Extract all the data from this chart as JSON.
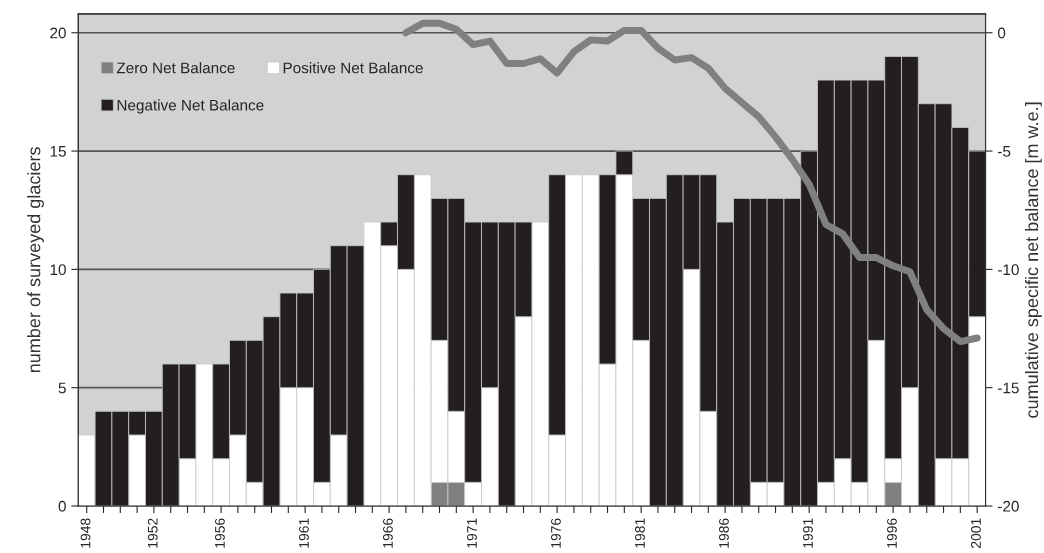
{
  "chart_data": {
    "type": "bar",
    "stacked": true,
    "ylabel": "number of surveyed glaciers",
    "y2label": "cumulative specific net balance [m w.e.]",
    "categories": [
      "1948",
      null,
      null,
      null,
      "1952",
      null,
      null,
      null,
      "1956",
      null,
      null,
      null,
      null,
      "1961",
      null,
      null,
      null,
      null,
      "1966",
      null,
      null,
      null,
      null,
      "1971",
      null,
      null,
      null,
      null,
      "1976",
      null,
      null,
      null,
      null,
      "1981",
      null,
      null,
      null,
      null,
      "1986",
      null,
      null,
      null,
      null,
      "1991",
      null,
      null,
      null,
      null,
      "1996",
      null,
      null,
      null,
      null,
      "2001"
    ],
    "series": [
      {
        "name": "Zero Net Balance",
        "color": "#808080",
        "values": [
          0,
          0,
          0,
          0,
          0,
          0,
          0,
          0,
          0,
          0,
          0,
          0,
          0,
          0,
          0,
          0,
          0,
          0,
          0,
          0,
          0,
          1,
          1,
          0,
          0,
          0,
          0,
          0,
          0,
          0,
          0,
          0,
          0,
          0,
          0,
          0,
          0,
          0,
          0,
          0,
          0,
          0,
          0,
          0,
          0,
          0,
          0,
          0,
          1,
          0,
          0,
          0,
          0,
          0
        ]
      },
      {
        "name": "Positive Net Balance",
        "color": "#ffffff",
        "values": [
          3,
          0,
          0,
          3,
          0,
          0,
          2,
          6,
          2,
          3,
          1,
          0,
          5,
          5,
          1,
          3,
          0,
          12,
          11,
          10,
          14,
          6,
          3,
          1,
          5,
          0,
          8,
          12,
          3,
          14,
          14,
          6,
          14,
          7,
          0,
          0,
          10,
          4,
          0,
          0,
          1,
          1,
          0,
          0,
          1,
          2,
          1,
          7,
          1,
          5,
          0,
          2,
          2,
          8
        ]
      },
      {
        "name": "Negative Net Balance",
        "color": "#231f20",
        "values": [
          0,
          4,
          4,
          1,
          4,
          6,
          4,
          0,
          4,
          4,
          6,
          8,
          4,
          4,
          9,
          8,
          11,
          0,
          1,
          4,
          0,
          6,
          9,
          11,
          7,
          12,
          4,
          0,
          11,
          0,
          0,
          8,
          1,
          6,
          13,
          14,
          4,
          10,
          12,
          13,
          12,
          12,
          13,
          15,
          17,
          16,
          17,
          11,
          17,
          14,
          17,
          15,
          14,
          7
        ]
      },
      {
        "type": "line",
        "axis": "y2",
        "color": "#808080",
        "values": [
          null,
          null,
          null,
          null,
          null,
          null,
          null,
          null,
          null,
          null,
          null,
          null,
          null,
          null,
          null,
          null,
          null,
          null,
          null,
          0,
          0.4,
          0.4,
          0.15,
          -0.5,
          -0.35,
          -1.3,
          -1.3,
          -1.1,
          -1.7,
          -0.8,
          -0.3,
          -0.35,
          0.1,
          0.1,
          -0.65,
          -1.15,
          -1.05,
          -1.5,
          -2.35,
          -2.95,
          -3.55,
          -4.4,
          -5.35,
          -6.4,
          -8.1,
          -8.5,
          -9.5,
          -9.5,
          -9.85,
          -10.1,
          -11.7,
          -12.5,
          -13.05,
          -12.9
        ]
      }
    ],
    "ylim": [
      0,
      20.8
    ],
    "yticks": [
      0,
      5,
      10,
      15,
      20
    ],
    "y2lim": [
      -20,
      0.8
    ],
    "y2ticks": [
      -20,
      -15,
      -10,
      -5,
      0
    ],
    "grid": "y",
    "legend": "top left",
    "marker": "none",
    "line_style": "solid"
  }
}
